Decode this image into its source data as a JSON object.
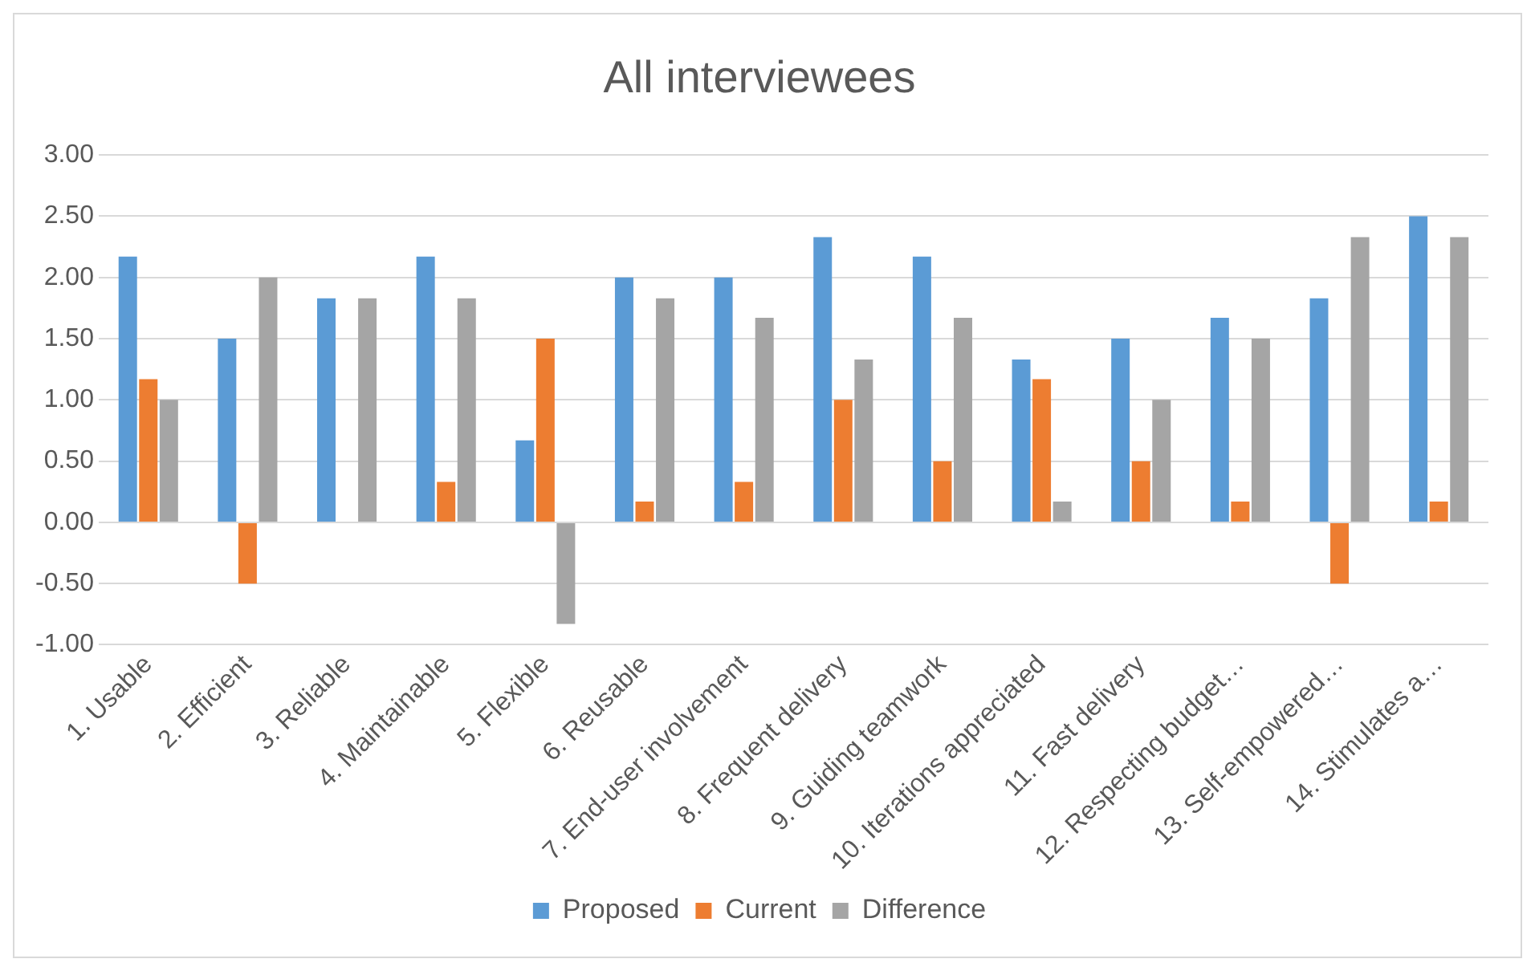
{
  "chart_data": {
    "type": "bar",
    "title": "All interviewees",
    "categories": [
      "1. Usable",
      "2. Efficient",
      "3. Reliable",
      "4. Maintainable",
      "5. Flexible",
      "6. Reusable",
      "7. End-user involvement",
      "8. Frequent delivery",
      "9. Guiding teamwork",
      "10. Iterations appreciated",
      "11. Fast delivery",
      "12. Respecting budget…",
      "13. Self-empowered…",
      "14. Stimulates a…"
    ],
    "series": [
      {
        "name": "Proposed",
        "color": "#5b9bd5",
        "values": [
          2.17,
          1.5,
          1.83,
          2.17,
          0.67,
          2.0,
          2.0,
          2.33,
          2.17,
          1.33,
          1.5,
          1.67,
          1.83,
          2.5
        ]
      },
      {
        "name": "Current",
        "color": "#ed7d31",
        "values": [
          1.17,
          -0.5,
          0,
          0.33,
          1.5,
          0.17,
          0.33,
          1.0,
          0.5,
          1.17,
          0.5,
          0.17,
          -0.5,
          0.17
        ]
      },
      {
        "name": "Difference",
        "color": "#a5a5a5",
        "values": [
          1.0,
          2.0,
          1.83,
          1.83,
          -0.83,
          1.83,
          1.67,
          1.33,
          1.67,
          0.17,
          1.0,
          1.5,
          2.33,
          2.33
        ]
      }
    ],
    "ylim": [
      -1,
      3
    ],
    "yticks": [
      {
        "value": -1,
        "label": "-1.00"
      },
      {
        "value": -0.5,
        "label": "-0.50"
      },
      {
        "value": 0,
        "label": "0.00"
      },
      {
        "value": 0.5,
        "label": "0.50"
      },
      {
        "value": 1,
        "label": "1.00"
      },
      {
        "value": 1.5,
        "label": "1.50"
      },
      {
        "value": 2,
        "label": "2.00"
      },
      {
        "value": 2.5,
        "label": "2.50"
      },
      {
        "value": 3,
        "label": "3.00"
      }
    ],
    "grid": "y",
    "legend": "bottom"
  }
}
